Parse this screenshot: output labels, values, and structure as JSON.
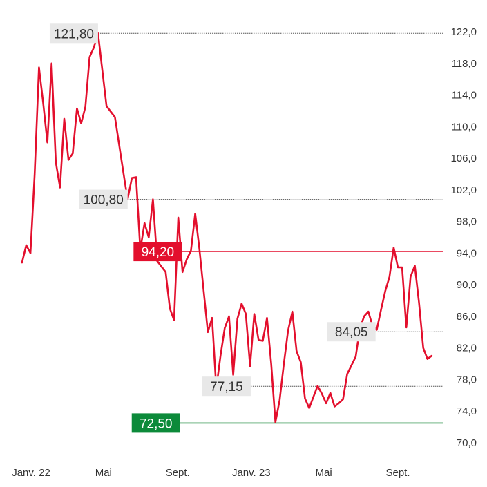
{
  "chart_data": {
    "type": "line",
    "y_axis": {
      "position": "right",
      "ylim": [
        70.0,
        122.0
      ],
      "ticks": [
        70.0,
        74.0,
        78.0,
        82.0,
        86.0,
        90.0,
        94.0,
        98.0,
        102.0,
        106.0,
        110.0,
        114.0,
        118.0,
        122.0
      ],
      "tick_labels": [
        "70,0",
        "74,0",
        "78,0",
        "82,0",
        "86,0",
        "90,0",
        "94,0",
        "98,0",
        "102,0",
        "106,0",
        "110,0",
        "114,0",
        "118,0",
        "122,0"
      ]
    },
    "x_axis": {
      "labels": [
        {
          "text": "Janv. 22",
          "date": "2022-01-01"
        },
        {
          "text": "Mai",
          "date": "2022-05-01"
        },
        {
          "text": "Sept.",
          "date": "2022-09-01"
        },
        {
          "text": "Janv. 23",
          "date": "2023-01-01"
        },
        {
          "text": "Mai",
          "date": "2023-05-01"
        },
        {
          "text": "Sept.",
          "date": "2023-09-01"
        }
      ]
    },
    "series": [
      {
        "color": "#e30f2d",
        "points": [
          [
            "2021-12-17",
            92.8
          ],
          [
            "2021-12-24",
            95.0
          ],
          [
            "2021-12-31",
            94.0
          ],
          [
            "2022-01-07",
            104.0
          ],
          [
            "2022-01-14",
            117.5
          ],
          [
            "2022-01-21",
            113.0
          ],
          [
            "2022-01-28",
            108.0
          ],
          [
            "2022-02-04",
            118.0
          ],
          [
            "2022-02-11",
            105.5
          ],
          [
            "2022-02-18",
            102.3
          ],
          [
            "2022-02-25",
            111.0
          ],
          [
            "2022-03-04",
            105.8
          ],
          [
            "2022-03-11",
            106.6
          ],
          [
            "2022-03-18",
            112.3
          ],
          [
            "2022-03-25",
            110.4
          ],
          [
            "2022-04-01",
            112.5
          ],
          [
            "2022-04-08",
            118.8
          ],
          [
            "2022-04-15",
            120.0
          ],
          [
            "2022-04-22",
            121.8
          ],
          [
            "2022-05-06",
            112.6
          ],
          [
            "2022-05-20",
            111.2
          ],
          [
            "2022-06-03",
            104.2
          ],
          [
            "2022-06-10",
            100.8
          ],
          [
            "2022-06-17",
            103.5
          ],
          [
            "2022-06-24",
            103.6
          ],
          [
            "2022-07-01",
            94.4
          ],
          [
            "2022-07-08",
            97.8
          ],
          [
            "2022-07-15",
            96.0
          ],
          [
            "2022-07-22",
            100.8
          ],
          [
            "2022-07-29",
            93.0
          ],
          [
            "2022-08-12",
            91.6
          ],
          [
            "2022-08-19",
            87.0
          ],
          [
            "2022-08-26",
            85.5
          ],
          [
            "2022-09-02",
            98.5
          ],
          [
            "2022-09-09",
            91.6
          ],
          [
            "2022-09-16",
            93.2
          ],
          [
            "2022-09-23",
            94.3
          ],
          [
            "2022-09-30",
            99.0
          ],
          [
            "2022-10-07",
            94.5
          ],
          [
            "2022-10-21",
            84.0
          ],
          [
            "2022-10-28",
            85.8
          ],
          [
            "2022-11-04",
            76.9
          ],
          [
            "2022-11-11",
            81.0
          ],
          [
            "2022-11-18",
            84.5
          ],
          [
            "2022-11-25",
            86.0
          ],
          [
            "2022-12-02",
            78.6
          ],
          [
            "2022-12-09",
            85.7
          ],
          [
            "2022-12-16",
            87.6
          ],
          [
            "2022-12-23",
            86.3
          ],
          [
            "2022-12-30",
            79.7
          ],
          [
            "2023-01-06",
            86.3
          ],
          [
            "2023-01-13",
            83.0
          ],
          [
            "2023-01-20",
            82.9
          ],
          [
            "2023-01-27",
            85.8
          ],
          [
            "2023-02-03",
            80.0
          ],
          [
            "2023-02-10",
            72.6
          ],
          [
            "2023-02-17",
            75.4
          ],
          [
            "2023-02-24",
            80.0
          ],
          [
            "2023-03-03",
            84.2
          ],
          [
            "2023-03-10",
            86.6
          ],
          [
            "2023-03-17",
            81.6
          ],
          [
            "2023-03-24",
            80.2
          ],
          [
            "2023-03-31",
            75.6
          ],
          [
            "2023-04-07",
            74.4
          ],
          [
            "2023-04-14",
            75.8
          ],
          [
            "2023-04-21",
            77.2
          ],
          [
            "2023-04-28",
            76.2
          ],
          [
            "2023-05-05",
            75.0
          ],
          [
            "2023-05-12",
            76.3
          ],
          [
            "2023-05-19",
            74.6
          ],
          [
            "2023-05-26",
            75.0
          ],
          [
            "2023-06-02",
            75.5
          ],
          [
            "2023-06-09",
            78.7
          ],
          [
            "2023-06-16",
            79.8
          ],
          [
            "2023-06-23",
            80.9
          ],
          [
            "2023-06-30",
            84.5
          ],
          [
            "2023-07-07",
            86.0
          ],
          [
            "2023-07-14",
            86.6
          ],
          [
            "2023-07-21",
            84.8
          ],
          [
            "2023-07-28",
            84.3
          ],
          [
            "2023-08-04",
            86.8
          ],
          [
            "2023-08-11",
            89.2
          ],
          [
            "2023-08-18",
            91.0
          ],
          [
            "2023-08-25",
            94.7
          ],
          [
            "2023-09-01",
            92.2
          ],
          [
            "2023-09-08",
            92.2
          ],
          [
            "2023-09-15",
            84.6
          ],
          [
            "2023-09-22",
            91.0
          ],
          [
            "2023-09-29",
            92.4
          ],
          [
            "2023-10-06",
            87.7
          ],
          [
            "2023-10-13",
            82.0
          ],
          [
            "2023-10-20",
            80.6
          ],
          [
            "2023-10-27",
            81.0
          ]
        ]
      }
    ],
    "annotations": [
      {
        "text": "121,80",
        "value": 121.8,
        "style": "grey-box",
        "line": "dotted",
        "from_date": "2022-04-22"
      },
      {
        "text": "100,80",
        "value": 100.8,
        "style": "grey-box",
        "line": "dotted",
        "from_date": "2022-06-10"
      },
      {
        "text": "94,20",
        "value": 94.2,
        "style": "red-box",
        "line": "red-solid",
        "from_date": "2022-09-08"
      },
      {
        "text": "84,05",
        "value": 84.05,
        "style": "grey-box",
        "line": "dotted",
        "from_date": "2023-07-26"
      },
      {
        "text": "77,15",
        "value": 77.15,
        "style": "grey-box",
        "line": "dotted",
        "from_date": "2022-12-31"
      },
      {
        "text": "72,50",
        "value": 72.5,
        "style": "green-box",
        "line": "green-solid",
        "from_date": "2022-09-05"
      }
    ],
    "grid": false,
    "colors": {
      "line": "#e30f2d",
      "red_box": "#e30f2d",
      "green_box": "#0c8a3a",
      "green_line": "#1b8a3c",
      "grey_box": "#e8e8e8",
      "text": "#333333"
    }
  }
}
